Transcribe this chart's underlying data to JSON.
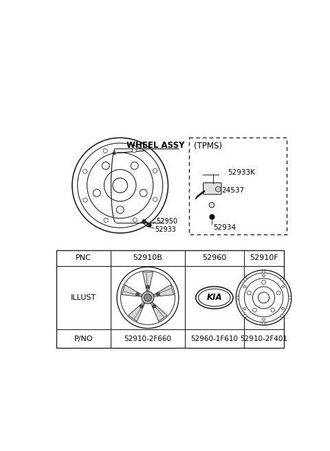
{
  "bg_color": "#ffffff",
  "top_label": "WHEEL ASSY",
  "tpms_label": "(TPMS)",
  "line_color": "#222222",
  "text_color": "#000000",
  "table_headers": [
    "PNC",
    "52910B",
    "52960",
    "52910F"
  ],
  "pno_values": [
    "52910-2F660",
    "52960-1F610",
    "52910-2F401"
  ],
  "wheel_label_52950": "52950",
  "wheel_label_52933": "52933",
  "tpms_52933K": "52933K",
  "tpms_24537": "24537",
  "tpms_52934": "52934"
}
